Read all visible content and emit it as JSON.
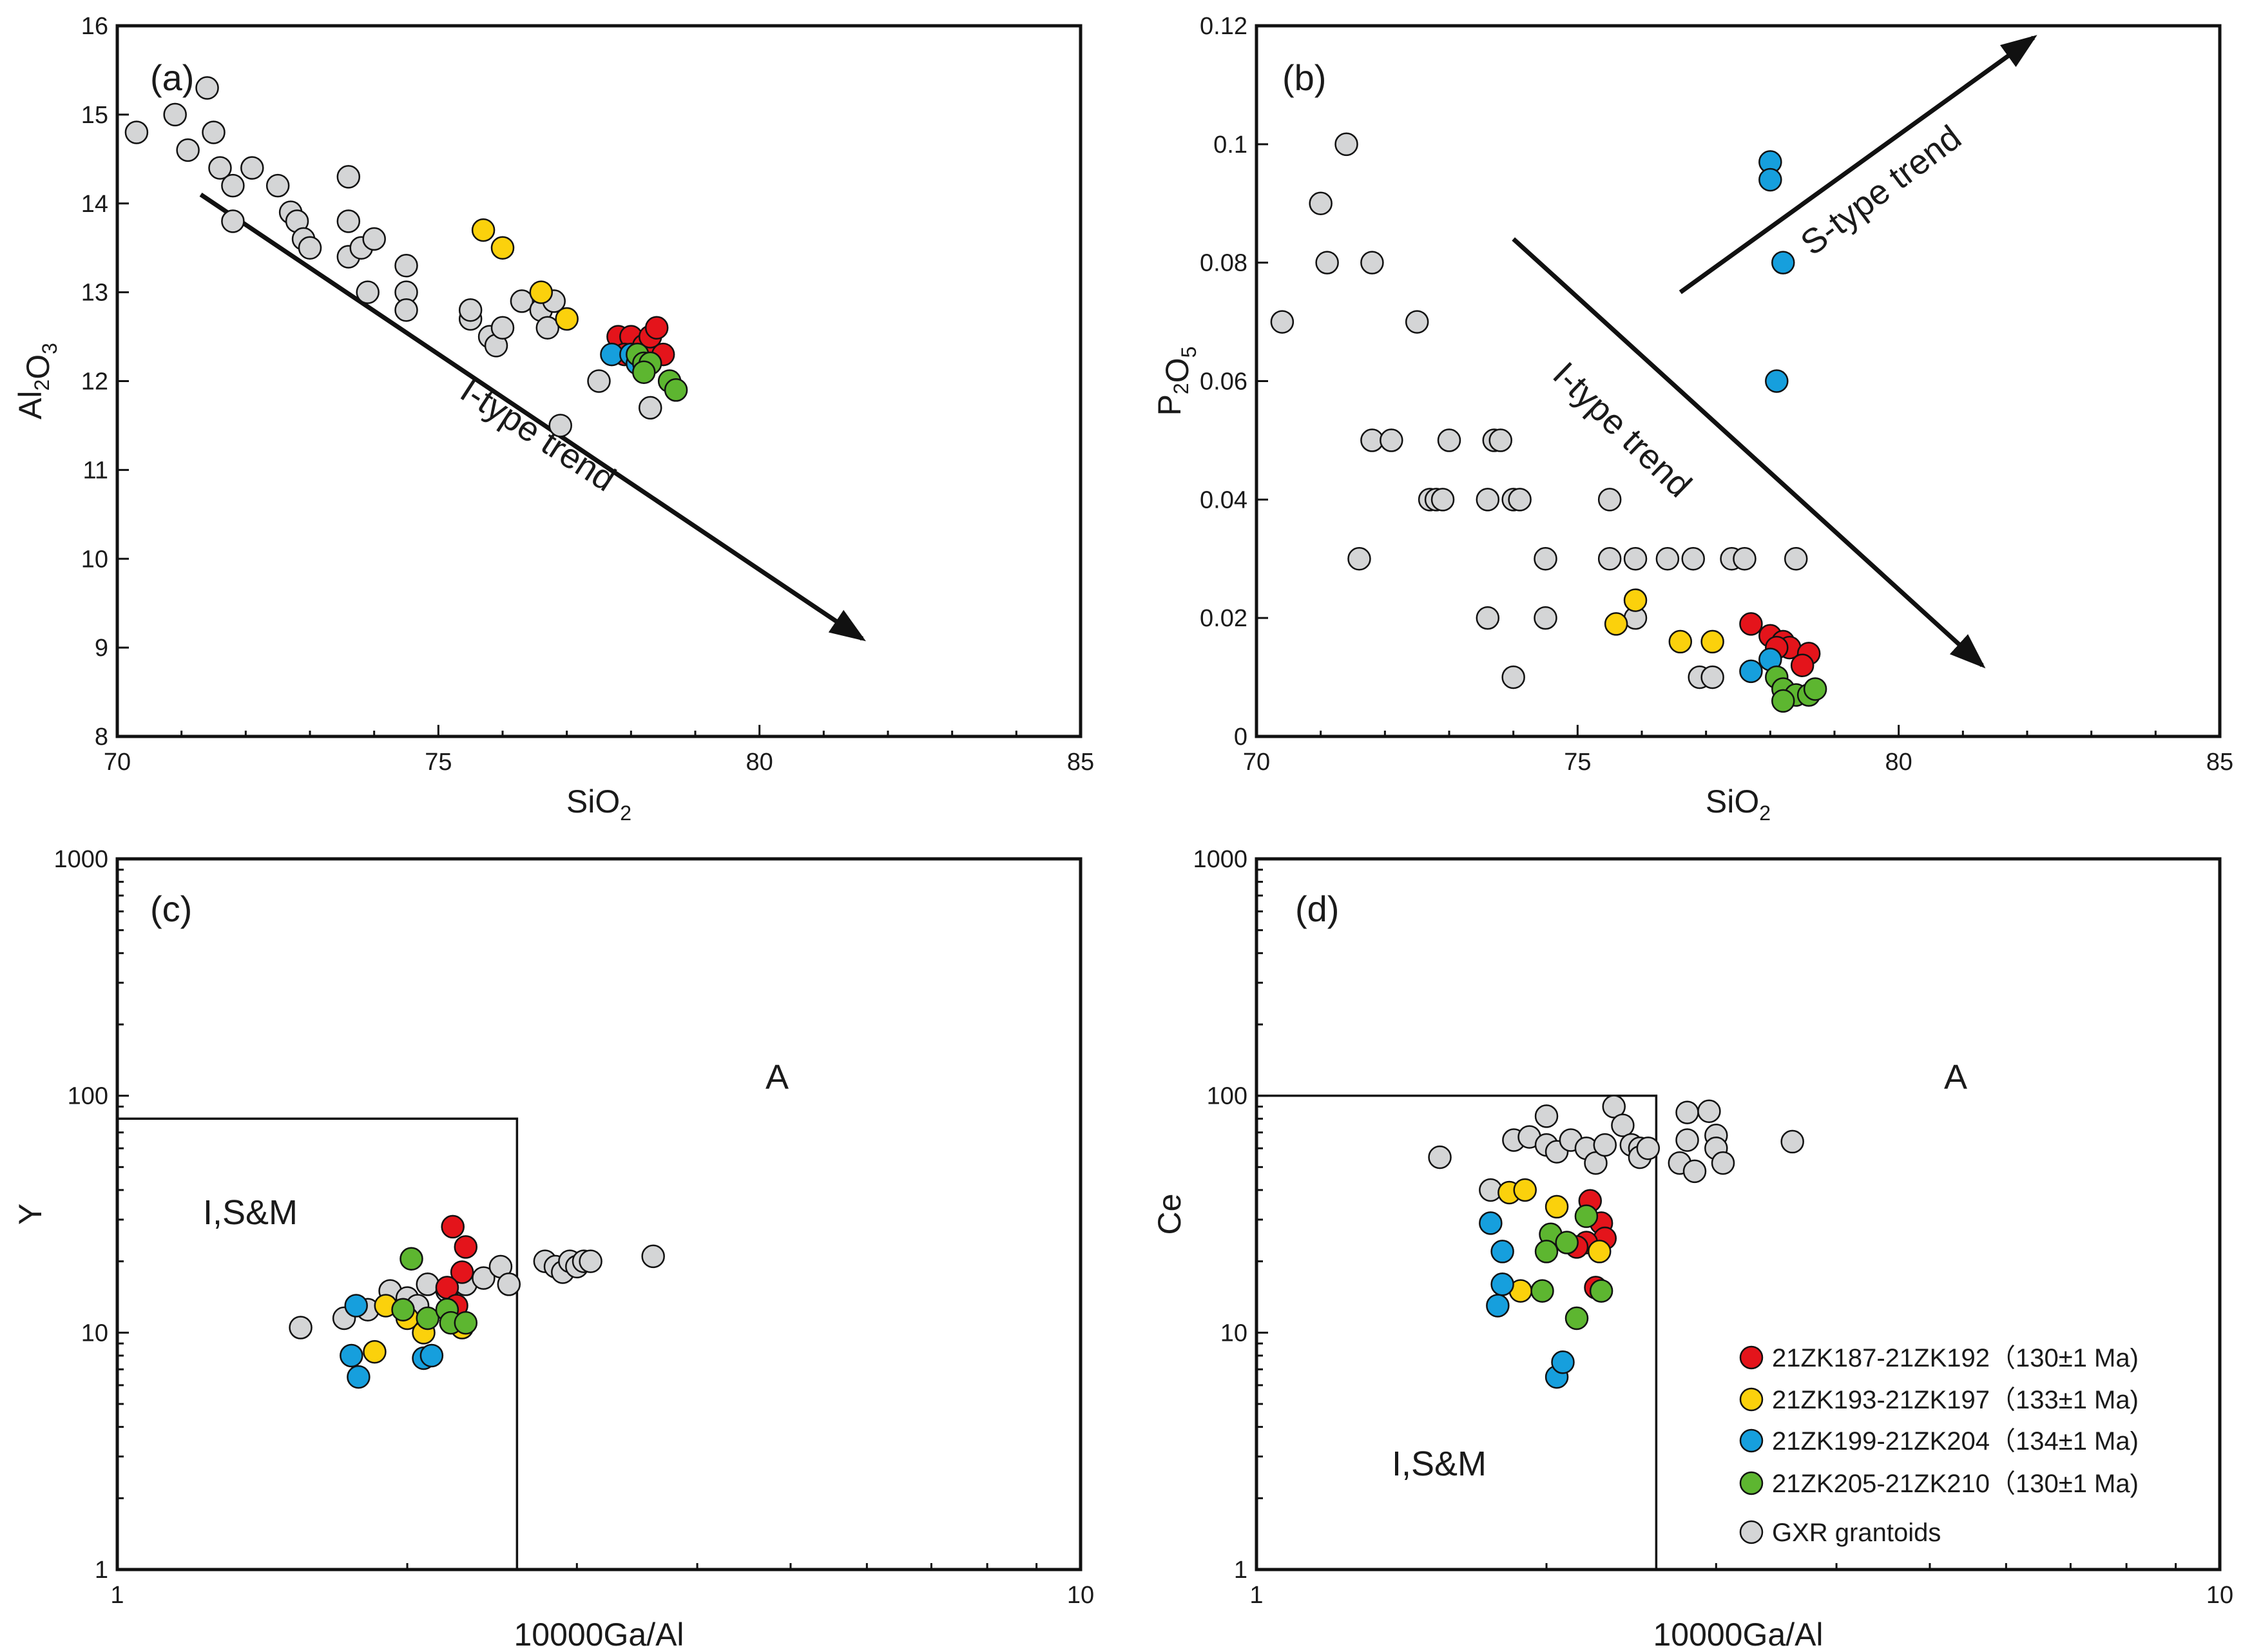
{
  "colors": {
    "g1": "#e4141b",
    "g2": "#fbd10c",
    "g3": "#169fdd",
    "g4": "#5db630",
    "gxr": "#d4d5d6"
  },
  "legend": [
    {
      "key": "g1",
      "label": "21ZK187-21ZK192（130±1 Ma)"
    },
    {
      "key": "g2",
      "label": "21ZK193-21ZK197（133±1 Ma)"
    },
    {
      "key": "g3",
      "label": "21ZK199-21ZK204（134±1 Ma)"
    },
    {
      "key": "g4",
      "label": "21ZK205-21ZK210（130±1 Ma)"
    },
    {
      "key": "gxr",
      "label": "GXR grantoids"
    }
  ],
  "chart_data": [
    {
      "panel": "(a)",
      "type": "scatter",
      "xlabel": "SiO2",
      "ylabel": "Al2O3",
      "xlim": [
        70,
        85
      ],
      "ylim": [
        8,
        16
      ],
      "xticks": [
        70,
        75,
        80,
        85
      ],
      "yticks": [
        8,
        9,
        10,
        11,
        12,
        13,
        14,
        15,
        16
      ],
      "annotations": [
        {
          "text": "I-type trend",
          "arrow_from": [
            71.3,
            14.1
          ],
          "arrow_to": [
            81.6,
            9.1
          ]
        }
      ],
      "series": [
        {
          "key": "gxr",
          "points": [
            [
              70.3,
              14.8
            ],
            [
              70.9,
              15.0
            ],
            [
              71.1,
              14.6
            ],
            [
              71.4,
              15.3
            ],
            [
              71.5,
              14.8
            ],
            [
              71.6,
              14.4
            ],
            [
              71.8,
              13.8
            ],
            [
              71.8,
              14.2
            ],
            [
              72.1,
              14.4
            ],
            [
              72.5,
              14.2
            ],
            [
              72.7,
              13.9
            ],
            [
              72.8,
              13.8
            ],
            [
              72.9,
              13.6
            ],
            [
              73.0,
              13.5
            ],
            [
              73.6,
              13.8
            ],
            [
              73.6,
              14.3
            ],
            [
              73.6,
              13.4
            ],
            [
              73.8,
              13.5
            ],
            [
              73.9,
              13.0
            ],
            [
              74.0,
              13.6
            ],
            [
              74.5,
              13.3
            ],
            [
              74.5,
              13.0
            ],
            [
              74.5,
              12.8
            ],
            [
              75.5,
              12.7
            ],
            [
              75.5,
              12.8
            ],
            [
              75.8,
              12.5
            ],
            [
              75.9,
              12.4
            ],
            [
              76.0,
              12.6
            ],
            [
              76.3,
              12.9
            ],
            [
              76.6,
              12.8
            ],
            [
              76.7,
              12.6
            ],
            [
              76.8,
              12.9
            ],
            [
              76.9,
              11.5
            ],
            [
              77.5,
              12.0
            ],
            [
              78.1,
              12.3
            ],
            [
              78.3,
              11.7
            ]
          ]
        },
        {
          "key": "g2",
          "points": [
            [
              75.7,
              13.7
            ],
            [
              76.0,
              13.5
            ],
            [
              76.6,
              13.0
            ],
            [
              77.0,
              12.7
            ]
          ]
        },
        {
          "key": "g1",
          "points": [
            [
              77.8,
              12.5
            ],
            [
              78.0,
              12.5
            ],
            [
              78.2,
              12.4
            ],
            [
              78.3,
              12.5
            ],
            [
              78.4,
              12.6
            ],
            [
              78.5,
              12.3
            ],
            [
              77.9,
              12.3
            ]
          ]
        },
        {
          "key": "g3",
          "points": [
            [
              77.7,
              12.3
            ],
            [
              78.0,
              12.3
            ],
            [
              78.1,
              12.2
            ]
          ]
        },
        {
          "key": "g4",
          "points": [
            [
              78.1,
              12.3
            ],
            [
              78.2,
              12.2
            ],
            [
              78.3,
              12.2
            ],
            [
              78.6,
              12.0
            ],
            [
              78.7,
              11.9
            ],
            [
              78.2,
              12.1
            ]
          ]
        }
      ]
    },
    {
      "panel": "(b)",
      "type": "scatter",
      "xlabel": "SiO2",
      "ylabel": "P2O5",
      "xlim": [
        70,
        85
      ],
      "ylim": [
        0,
        0.12
      ],
      "xticks": [
        70,
        75,
        80,
        85
      ],
      "yticks": [
        0,
        0.02,
        0.04,
        0.06,
        0.08,
        0.1,
        0.12
      ],
      "ytick_labels": [
        "0",
        "0.02",
        "0.04",
        "0.06",
        "0.08",
        "0.1",
        "0.12"
      ],
      "annotations": [
        {
          "text": "I-type trend",
          "arrow_from": [
            74.0,
            0.084
          ],
          "arrow_to": [
            81.3,
            0.012
          ]
        },
        {
          "text": "S-type trend",
          "arrow_from": [
            76.6,
            0.075
          ],
          "arrow_to": [
            82.1,
            0.118
          ]
        }
      ],
      "series": [
        {
          "key": "gxr",
          "points": [
            [
              70.4,
              0.07
            ],
            [
              71.0,
              0.09
            ],
            [
              71.1,
              0.08
            ],
            [
              71.4,
              0.1
            ],
            [
              71.6,
              0.03
            ],
            [
              71.8,
              0.08
            ],
            [
              71.8,
              0.05
            ],
            [
              72.1,
              0.05
            ],
            [
              72.5,
              0.07
            ],
            [
              72.7,
              0.04
            ],
            [
              72.8,
              0.04
            ],
            [
              73.0,
              0.05
            ],
            [
              72.9,
              0.04
            ],
            [
              73.6,
              0.04
            ],
            [
              73.7,
              0.05
            ],
            [
              73.8,
              0.05
            ],
            [
              74.0,
              0.04
            ],
            [
              74.1,
              0.04
            ],
            [
              73.6,
              0.02
            ],
            [
              74.0,
              0.01
            ],
            [
              74.5,
              0.03
            ],
            [
              74.5,
              0.02
            ],
            [
              75.5,
              0.04
            ],
            [
              75.5,
              0.03
            ],
            [
              75.9,
              0.03
            ],
            [
              75.9,
              0.02
            ],
            [
              76.4,
              0.03
            ],
            [
              76.8,
              0.03
            ],
            [
              77.4,
              0.03
            ],
            [
              77.6,
              0.03
            ],
            [
              78.4,
              0.03
            ],
            [
              76.9,
              0.01
            ],
            [
              77.1,
              0.01
            ]
          ]
        },
        {
          "key": "g2",
          "points": [
            [
              75.6,
              0.019
            ],
            [
              75.9,
              0.023
            ],
            [
              76.6,
              0.016
            ],
            [
              77.1,
              0.016
            ]
          ]
        },
        {
          "key": "g1",
          "points": [
            [
              77.7,
              0.019
            ],
            [
              78.0,
              0.017
            ],
            [
              78.2,
              0.016
            ],
            [
              78.3,
              0.015
            ],
            [
              78.6,
              0.014
            ],
            [
              78.5,
              0.012
            ],
            [
              78.1,
              0.015
            ]
          ]
        },
        {
          "key": "g3",
          "points": [
            [
              78.0,
              0.097
            ],
            [
              78.0,
              0.094
            ],
            [
              78.2,
              0.08
            ],
            [
              78.1,
              0.06
            ],
            [
              77.7,
              0.011
            ],
            [
              78.0,
              0.013
            ]
          ]
        },
        {
          "key": "g4",
          "points": [
            [
              78.1,
              0.01
            ],
            [
              78.2,
              0.008
            ],
            [
              78.4,
              0.007
            ],
            [
              78.6,
              0.007
            ],
            [
              78.7,
              0.008
            ],
            [
              78.2,
              0.006
            ]
          ]
        }
      ]
    },
    {
      "panel": "(c)",
      "type": "scatter",
      "xlabel": "10000Ga/Al",
      "ylabel": "Y",
      "xscale": "log",
      "yscale": "log",
      "xlim": [
        1,
        10
      ],
      "ylim": [
        1,
        1000
      ],
      "xticks": [
        1,
        10
      ],
      "yticks": [
        1,
        10,
        100,
        1000
      ],
      "regions": [
        {
          "label": "I,S&M",
          "x": [
            1,
            2.6
          ],
          "y": [
            1,
            80
          ]
        },
        {
          "label": "A"
        }
      ],
      "series": [
        {
          "key": "gxr",
          "points": [
            [
              1.55,
              10.5
            ],
            [
              1.72,
              11.5
            ],
            [
              1.82,
              12.5
            ],
            [
              1.92,
              15
            ],
            [
              2.0,
              14
            ],
            [
              2.05,
              13
            ],
            [
              2.1,
              16
            ],
            [
              2.2,
              15
            ],
            [
              2.3,
              16
            ],
            [
              2.4,
              17
            ],
            [
              2.5,
              19
            ],
            [
              2.55,
              16
            ],
            [
              2.78,
              20
            ],
            [
              2.85,
              19
            ],
            [
              2.9,
              18
            ],
            [
              2.95,
              20
            ],
            [
              3.0,
              19
            ],
            [
              3.05,
              20
            ],
            [
              3.1,
              20
            ],
            [
              3.6,
              21
            ]
          ]
        },
        {
          "key": "g1",
          "points": [
            [
              2.23,
              28
            ],
            [
              2.3,
              23
            ],
            [
              2.28,
              18
            ],
            [
              2.2,
              15.5
            ],
            [
              2.25,
              13
            ]
          ]
        },
        {
          "key": "g2",
          "points": [
            [
              1.9,
              13
            ],
            [
              2.0,
              11.5
            ],
            [
              2.08,
              10
            ],
            [
              2.28,
              10.5
            ],
            [
              1.85,
              8.3
            ]
          ]
        },
        {
          "key": "g3",
          "points": [
            [
              1.77,
              13
            ],
            [
              1.75,
              8
            ],
            [
              1.78,
              6.5
            ],
            [
              2.08,
              7.8
            ],
            [
              2.12,
              8
            ]
          ]
        },
        {
          "key": "g4",
          "points": [
            [
              2.02,
              20.5
            ],
            [
              1.98,
              12.5
            ],
            [
              2.1,
              11.5
            ],
            [
              2.2,
              12.5
            ],
            [
              2.22,
              11
            ],
            [
              2.3,
              11
            ]
          ]
        }
      ]
    },
    {
      "panel": "(d)",
      "type": "scatter",
      "xlabel": "10000Ga/Al",
      "ylabel": "Ce",
      "xscale": "log",
      "yscale": "log",
      "xlim": [
        1,
        10
      ],
      "ylim": [
        1,
        1000
      ],
      "xticks": [
        1,
        10
      ],
      "yticks": [
        1,
        10,
        100,
        1000
      ],
      "regions": [
        {
          "label": "I,S&M",
          "x": [
            1,
            2.6
          ],
          "y": [
            1,
            100
          ]
        },
        {
          "label": "A"
        }
      ],
      "series": [
        {
          "key": "gxr",
          "points": [
            [
              1.55,
              55
            ],
            [
              1.75,
              40
            ],
            [
              1.85,
              65
            ],
            [
              1.92,
              67
            ],
            [
              2.0,
              82
            ],
            [
              2.0,
              62
            ],
            [
              2.05,
              58
            ],
            [
              2.12,
              65
            ],
            [
              2.2,
              60
            ],
            [
              2.25,
              52
            ],
            [
              2.3,
              62
            ],
            [
              2.35,
              90
            ],
            [
              2.4,
              75
            ],
            [
              2.45,
              62
            ],
            [
              2.5,
              60
            ],
            [
              2.5,
              55
            ],
            [
              2.55,
              60
            ],
            [
              2.75,
              52
            ],
            [
              2.8,
              85
            ],
            [
              2.8,
              65
            ],
            [
              2.85,
              48
            ],
            [
              2.95,
              86
            ],
            [
              3.0,
              68
            ],
            [
              3.0,
              60
            ],
            [
              3.05,
              52
            ],
            [
              3.6,
              64
            ]
          ]
        },
        {
          "key": "g1",
          "points": [
            [
              2.22,
              36
            ],
            [
              2.28,
              29
            ],
            [
              2.3,
              25
            ],
            [
              2.2,
              24
            ],
            [
              2.15,
              23
            ],
            [
              2.25,
              15.5
            ]
          ]
        },
        {
          "key": "g2",
          "points": [
            [
              1.83,
              39
            ],
            [
              1.9,
              40
            ],
            [
              2.05,
              34
            ],
            [
              2.27,
              22
            ],
            [
              1.88,
              15
            ]
          ]
        },
        {
          "key": "g3",
          "points": [
            [
              1.75,
              29
            ],
            [
              1.8,
              22
            ],
            [
              1.8,
              16
            ],
            [
              1.78,
              13
            ],
            [
              2.05,
              6.5
            ],
            [
              2.08,
              7.5
            ]
          ]
        },
        {
          "key": "g4",
          "points": [
            [
              2.2,
              31
            ],
            [
              2.02,
              26
            ],
            [
              2.1,
              24
            ],
            [
              2.0,
              22
            ],
            [
              1.98,
              15
            ],
            [
              2.28,
              15
            ],
            [
              2.15,
              11.5
            ]
          ]
        }
      ]
    }
  ]
}
